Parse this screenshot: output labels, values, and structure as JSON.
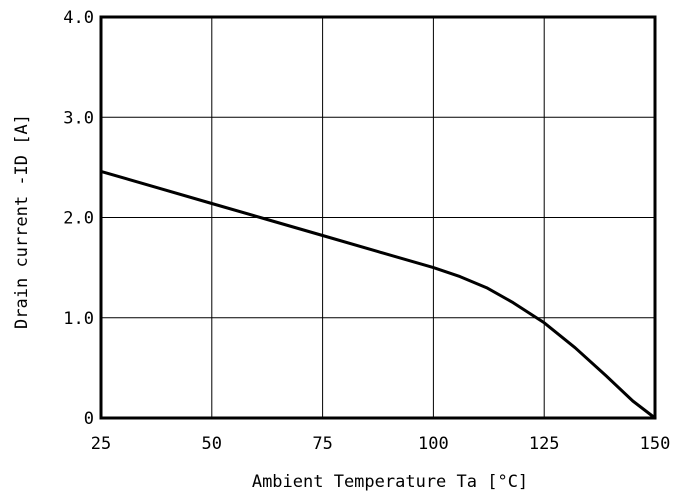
{
  "chart_data": {
    "type": "line",
    "xlabel": "Ambient Temperature Ta [°C]",
    "ylabel": "Drain current -ID [A]",
    "xlim": [
      25,
      150
    ],
    "ylim": [
      0,
      4.0
    ],
    "x_ticks": [
      25,
      50,
      75,
      100,
      125,
      150
    ],
    "x_tick_labels": [
      "25",
      "50",
      "75",
      "100",
      "125",
      "150"
    ],
    "y_ticks": [
      0,
      1.0,
      2.0,
      3.0,
      4.0
    ],
    "y_tick_labels": [
      "0",
      "1.0",
      "2.0",
      "3.0",
      "4.0"
    ],
    "grid": true,
    "series": [
      {
        "x": [
          25,
          37.5,
          50,
          62.5,
          75,
          87.5,
          100,
          106,
          112,
          118,
          125,
          132,
          139,
          145,
          150
        ],
        "values": [
          2.46,
          2.3,
          2.14,
          1.98,
          1.82,
          1.66,
          1.5,
          1.41,
          1.3,
          1.15,
          0.95,
          0.7,
          0.42,
          0.17,
          0.0
        ]
      }
    ]
  }
}
